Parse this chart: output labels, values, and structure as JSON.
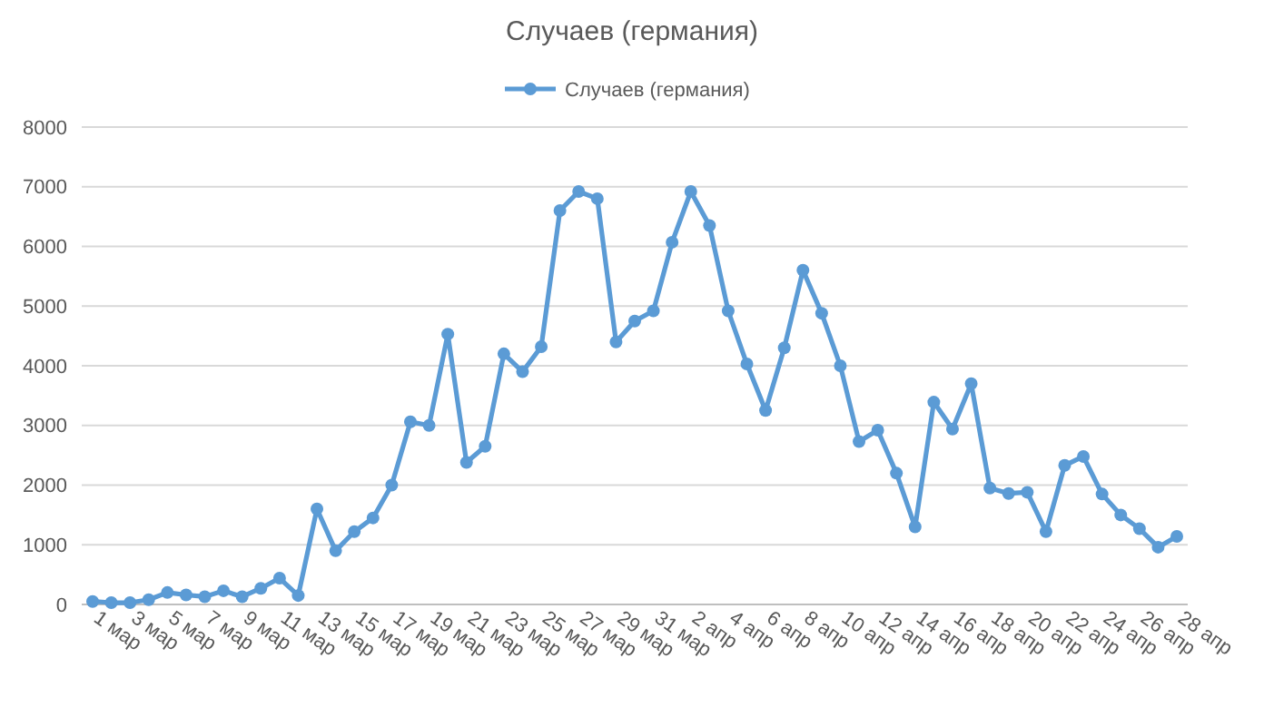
{
  "chart_data": {
    "type": "line",
    "title": "Случаев (германия)",
    "categories": [
      "1 мар",
      null,
      "3 мар",
      null,
      "5 мар",
      null,
      "7 мар",
      null,
      "9 мар",
      null,
      "11 мар",
      null,
      "13 мар",
      null,
      "15 мар",
      null,
      "17 мар",
      null,
      "19 мар",
      null,
      "21 мар",
      null,
      "23 мар",
      null,
      "25 мар",
      null,
      "27 мар",
      null,
      "29 мар",
      null,
      "31 мар",
      null,
      "2 апр",
      null,
      "4 апр",
      null,
      "6 апр",
      null,
      "8 апр",
      null,
      "10 апр",
      null,
      "12 апр",
      null,
      "14 апр",
      null,
      "16 апр",
      null,
      "18 апр",
      null,
      "20 апр",
      null,
      "22 апр",
      null,
      "24 апр",
      null,
      "26 апр",
      null,
      "28 апр"
    ],
    "series": [
      {
        "name": "Случаев (германия)",
        "color": "#5b9bd5",
        "values": [
          50,
          30,
          30,
          80,
          200,
          160,
          130,
          230,
          130,
          270,
          440,
          150,
          1600,
          900,
          1220,
          1450,
          2000,
          3060,
          3000,
          4530,
          2380,
          2650,
          4200,
          3900,
          4320,
          6600,
          6920,
          6800,
          4400,
          4750,
          4920,
          6070,
          6920,
          6350,
          4920,
          4030,
          3250,
          4300,
          5600,
          4880,
          4000,
          2730,
          2920,
          2200,
          1300,
          3390,
          2940,
          3700,
          1950,
          1860,
          1880,
          1220,
          2330,
          2480,
          1850,
          1500,
          1270,
          960,
          1140
        ]
      }
    ],
    "ylim": [
      0,
      8000
    ],
    "yticks": [
      0,
      1000,
      2000,
      3000,
      4000,
      5000,
      6000,
      7000,
      8000
    ],
    "grid": "y",
    "legend": "top",
    "marker": "circle",
    "line_style": "solid"
  }
}
